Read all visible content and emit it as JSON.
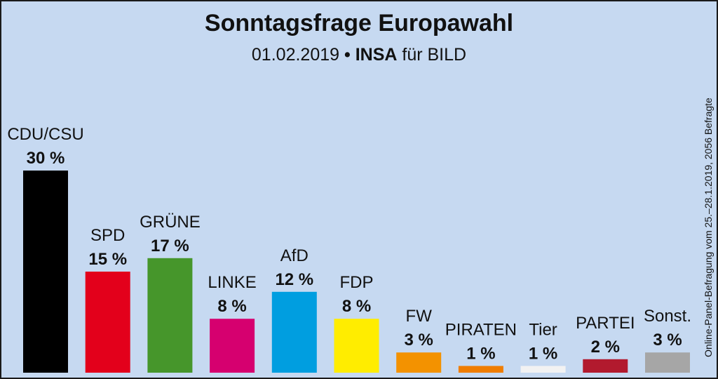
{
  "header": {
    "title": "Sonntagsfrage Europawahl",
    "date": "01.02.2019",
    "bullet": "•",
    "institute": "INSA",
    "client": "für BILD"
  },
  "side_note": "Online-Panel-Befragung vom 25.–28.1.2019, 2056 Befragte",
  "chart_data": {
    "type": "bar",
    "categories": [
      "CDU/CSU",
      "SPD",
      "GRÜNE",
      "LINKE",
      "AfD",
      "FDP",
      "FW",
      "PIRATEN",
      "Tier",
      "PARTEI",
      "Sonst."
    ],
    "values": [
      30,
      15,
      17,
      8,
      12,
      8,
      3,
      1,
      1,
      2,
      3
    ],
    "value_labels": [
      "30 %",
      "15 %",
      "17 %",
      "8 %",
      "12 %",
      "8 %",
      "3 %",
      "1 %",
      "1 %",
      "2 %",
      "3 %"
    ],
    "colors": [
      "#000000",
      "#e3001b",
      "#46962b",
      "#d6006f",
      "#009ee0",
      "#ffed00",
      "#f39200",
      "#f07d00",
      "#f2f2f2",
      "#b21a2e",
      "#a6a6a6"
    ],
    "title": "Sonntagsfrage Europawahl",
    "unit": "%",
    "grid": false,
    "legend": "none"
  }
}
